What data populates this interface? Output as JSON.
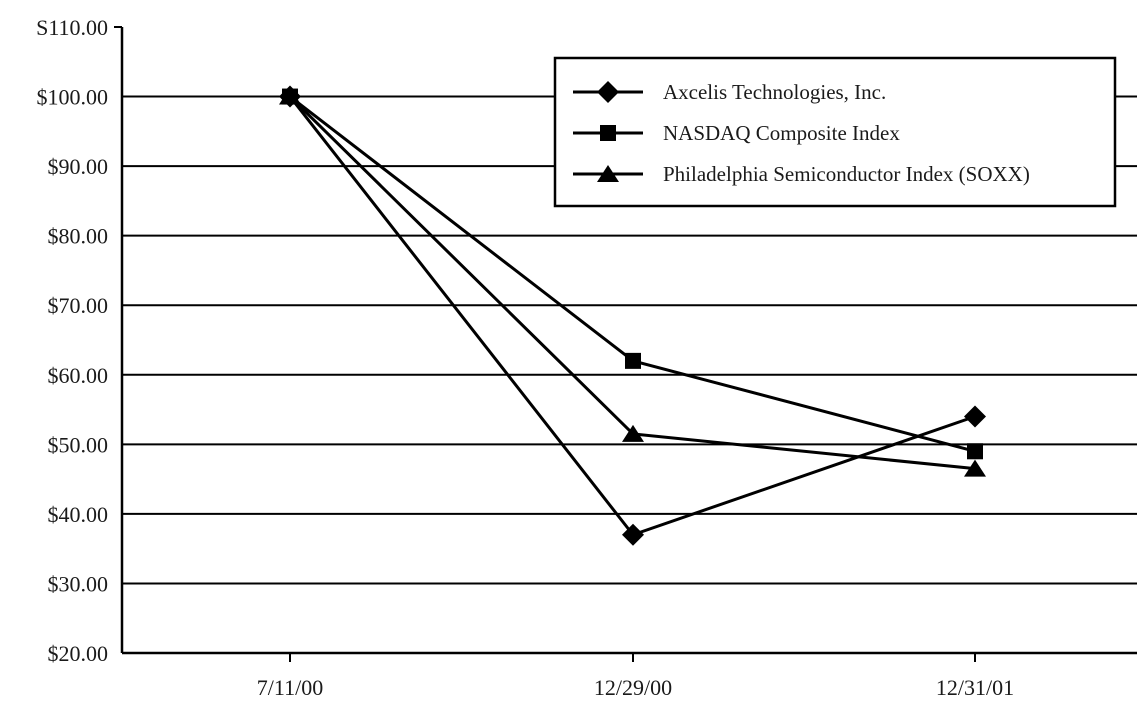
{
  "chart_data": {
    "type": "line",
    "title": "",
    "xlabel": "",
    "ylabel": "",
    "categories": [
      "7/11/00",
      "12/29/00",
      "12/31/01"
    ],
    "y_ticks": [
      "$20.00",
      "$30.00",
      "$40.00",
      "$50.00",
      "$60.00",
      "$70.00",
      "$80.00",
      "$90.00",
      "$100.00",
      "S110.00"
    ],
    "ylim": [
      20,
      110
    ],
    "grid": true,
    "legend_position": "top-right",
    "series": [
      {
        "name": "Axcelis Technologies, Inc.",
        "marker": "diamond",
        "values": [
          100,
          37,
          54
        ]
      },
      {
        "name": "NASDAQ Composite Index",
        "marker": "square",
        "values": [
          100,
          62,
          49
        ]
      },
      {
        "name": "Philadelphia Semiconductor Index (SOXX)",
        "marker": "triangle",
        "values": [
          100,
          51.5,
          46.5
        ]
      }
    ],
    "colors": {
      "line": "#000000",
      "grid": "#000000",
      "background": "#ffffff"
    }
  }
}
